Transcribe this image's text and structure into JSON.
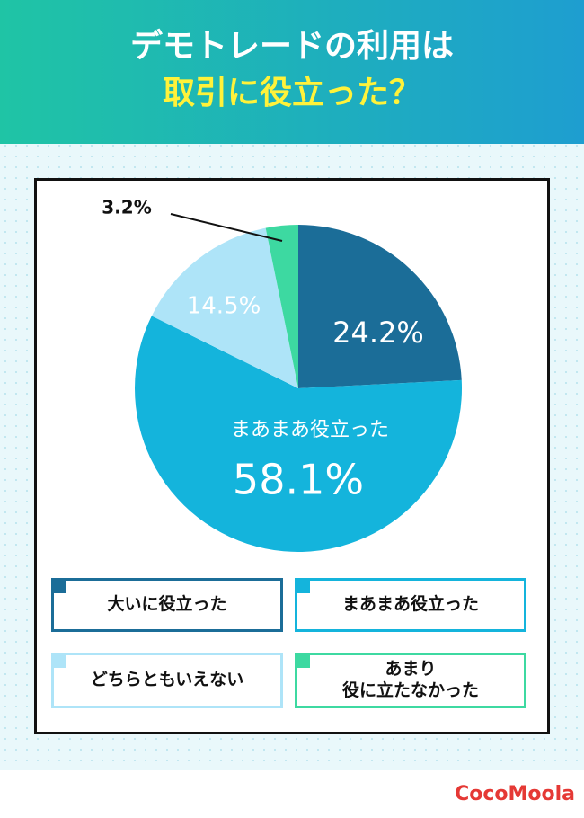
{
  "chart_data": {
    "type": "pie",
    "title": "デモトレードの利用は",
    "subtitle": "取引に役立った？",
    "categories": [
      "大いに役立った",
      "まあまあ役立った",
      "どちらともいえない",
      "あまり\n役に立たなかった"
    ],
    "values": [
      24.2,
      58.1,
      14.5,
      3.2
    ],
    "value_labels": [
      "24.2%",
      "58.1%",
      "14.5%",
      "3.2%"
    ],
    "colors": [
      "#1b6d98",
      "#14b4dc",
      "#aee4f8",
      "#3dd9a1"
    ]
  },
  "brand": "CocoMoola"
}
